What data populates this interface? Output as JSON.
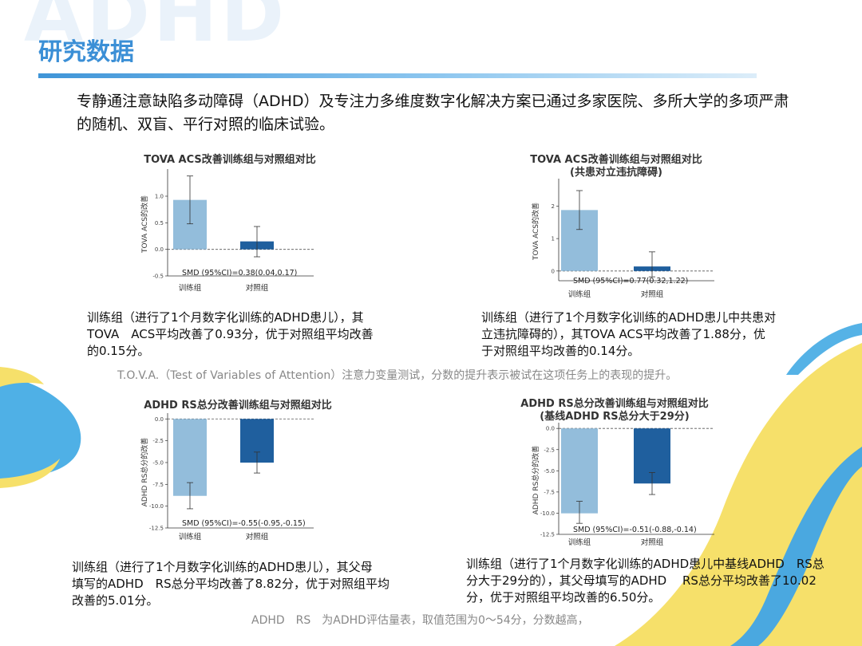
{
  "watermark": "ADHD",
  "header": {
    "title": "研究数据"
  },
  "intro": "专静通注意缺陷多动障碍（ADHD）及专注力多维度数字化解决方案已通过多家医院、多所大学的多项严肃的随机、双盲、平行对照的临床试验。",
  "colors": {
    "train": "#93bddb",
    "control": "#1f5f9e",
    "title_blue": "#3b8fd6",
    "accent_yellow": "#f6e06a",
    "accent_blue": "#55b2e6"
  },
  "chart_data": [
    {
      "type": "bar",
      "title": [
        "TOVA ACS改善训练组与对照组对比"
      ],
      "ylabel": "TOVA ACS的改善",
      "categories": [
        "训练组",
        "对照组"
      ],
      "values": [
        0.93,
        0.15
      ],
      "errors": [
        [
          0.48,
          1.38
        ],
        [
          -0.14,
          0.43
        ]
      ],
      "ylim": [
        -0.5,
        1.45
      ],
      "yticks": [
        "1.0",
        "0.5",
        "0.0",
        "-0.5"
      ],
      "ytick_values": [
        1.0,
        0.5,
        0.0,
        -0.5
      ],
      "annotation": "SMD (95%CI)=0.38(0.04,0.17)"
    },
    {
      "type": "bar",
      "title": [
        "TOVA ACS改善训练组与对照组对比",
        "(共患对立违抗障碍)"
      ],
      "ylabel": "TOVA ACS的改善",
      "categories": [
        "训练组",
        "对照组"
      ],
      "values": [
        1.88,
        0.14
      ],
      "errors": [
        [
          1.28,
          2.48
        ],
        [
          -0.18,
          0.59
        ]
      ],
      "ylim": [
        -0.3,
        2.75
      ],
      "yticks": [
        "2",
        "1",
        "0"
      ],
      "ytick_values": [
        2,
        1,
        0
      ],
      "annotation": "SMD (95%CI)=0.77(0.32,1.22)"
    },
    {
      "type": "bar",
      "title": [
        "ADHD RS总分改善训练组与对照组对比"
      ],
      "ylabel": "ADHD RS总分的改善",
      "categories": [
        "训练组",
        "对照组"
      ],
      "values": [
        -8.82,
        -5.01
      ],
      "errors": [
        [
          -10.3,
          -7.3
        ],
        [
          -6.2,
          -3.8
        ]
      ],
      "ylim": [
        -12.5,
        0.3
      ],
      "yticks": [
        "0.0",
        "-2.5",
        "-5.0",
        "-7.5",
        "-10.0",
        "-12.5"
      ],
      "ytick_values": [
        0,
        -2.5,
        -5,
        -7.5,
        -10,
        -12.5
      ],
      "annotation": "SMD (95%CI)=-0.55(-0.95,-0.15)"
    },
    {
      "type": "bar",
      "title": [
        "ADHD RS总分改善训练组与对照组对比",
        "(基线ADHD RS总分大于29分)"
      ],
      "ylabel": "ADHD RS总分的改善",
      "categories": [
        "训练组",
        "对照组"
      ],
      "values": [
        -10.02,
        -6.5
      ],
      "errors": [
        [
          -11.2,
          -8.6
        ],
        [
          -7.8,
          -5.2
        ]
      ],
      "ylim": [
        -12.5,
        0.3
      ],
      "yticks": [
        "0.0",
        "-2.5",
        "-5.0",
        "-7.5",
        "-10.0",
        "-12.5"
      ],
      "ytick_values": [
        0,
        -2.5,
        -5,
        -7.5,
        -10,
        -12.5
      ],
      "annotation": "SMD (95%CI)=-0.51(-0.88,-0.14)"
    }
  ],
  "descriptions": [
    [
      "训练组（进行了1个月数字化训练的ADHD患儿），其",
      "TOVA　ACS平均改善了0.93分，优于对照组平均改善",
      "的0.15分。"
    ],
    [
      "训练组（进行了1个月数字化训练的ADHD患儿中共患对",
      "立违抗障碍的），其TOVA ACS平均改善了1.88分，优",
      "于对照组平均改善的0.14分。"
    ],
    [
      "训练组（进行了1个月数字化训练的ADHD患儿），其父母",
      "填写的ADHD　RS总分平均改善了8.82分，优于对照组平均",
      "改善的5.01分。"
    ],
    [
      "训练组（进行了1个月数字化训练的ADHD患儿中基线ADHD　RS总",
      "分大于29分的），其父母填写的ADHD　 RS总分平均改善了10.02",
      "分，优于对照组平均改善的6.50分。"
    ]
  ],
  "notes": {
    "tova": "T.O.V.A.（Test of Variables of Attention）注意力变量测试，分数的提升表示被试在这项任务上的表现的提升。",
    "adhdrs": "ADHD　RS　为ADHD评估量表，取值范围为0～54分，分数越高，"
  }
}
